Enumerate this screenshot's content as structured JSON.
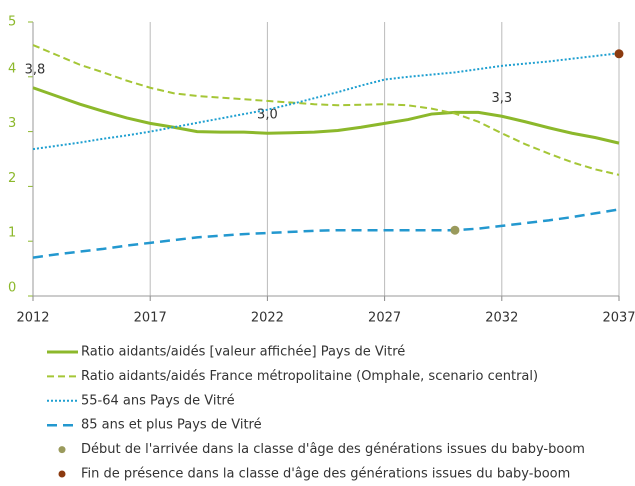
{
  "chart_data": {
    "type": "line",
    "x": [
      2012,
      2013,
      2014,
      2015,
      2016,
      2017,
      2018,
      2019,
      2020,
      2021,
      2022,
      2023,
      2024,
      2025,
      2026,
      2027,
      2028,
      2029,
      2030,
      2031,
      2032,
      2033,
      2034,
      2035,
      2036,
      2037
    ],
    "xlim": [
      2012,
      2037
    ],
    "xticks": [
      2012,
      2017,
      2022,
      2027,
      2032,
      2037
    ],
    "ylim": [
      0,
      5
    ],
    "yticks": [
      0,
      1,
      2,
      3,
      4,
      5
    ],
    "grid": true,
    "series": [
      {
        "name": "Ratio aidants/aidés [valeur affichée] Pays de Vitré",
        "color": "#8cb82b",
        "style": "solid",
        "values": [
          3.8,
          3.65,
          3.5,
          3.37,
          3.25,
          3.15,
          3.08,
          3.0,
          2.99,
          2.99,
          2.97,
          2.98,
          2.99,
          3.02,
          3.08,
          3.15,
          3.22,
          3.32,
          3.35,
          3.35,
          3.28,
          3.18,
          3.07,
          2.97,
          2.89,
          2.79
        ],
        "value_labels": [
          "3,8",
          null,
          null,
          null,
          null,
          null,
          null,
          null,
          null,
          null,
          "3,0",
          null,
          null,
          null,
          null,
          null,
          null,
          null,
          null,
          null,
          "3,3",
          null,
          null,
          null,
          null,
          null
        ]
      },
      {
        "name": "Ratio aidants/aidés France métropolitaine (Omphale, scenario central)",
        "color": "#a5c636",
        "style": "dashed",
        "values": [
          4.58,
          4.4,
          4.22,
          4.08,
          3.93,
          3.8,
          3.7,
          3.65,
          3.62,
          3.59,
          3.56,
          3.53,
          3.5,
          3.48,
          3.49,
          3.5,
          3.48,
          3.42,
          3.33,
          3.18,
          2.97,
          2.77,
          2.6,
          2.44,
          2.31,
          2.21
        ]
      },
      {
        "name": "55-64 ans Pays de Vitré",
        "color": "#1e9fd0",
        "style": "dotted",
        "values": [
          2.68,
          2.74,
          2.8,
          2.87,
          2.93,
          3.0,
          3.08,
          3.16,
          3.24,
          3.32,
          3.4,
          3.5,
          3.61,
          3.72,
          3.84,
          3.95,
          4.0,
          4.04,
          4.08,
          4.14,
          4.2,
          4.24,
          4.28,
          4.33,
          4.38,
          4.43
        ]
      },
      {
        "name": "85 ans et plus Pays de Vitré",
        "color": "#2398cf",
        "style": "longdash",
        "values": [
          0.7,
          0.76,
          0.81,
          0.86,
          0.92,
          0.97,
          1.02,
          1.07,
          1.1,
          1.13,
          1.15,
          1.17,
          1.19,
          1.2,
          1.2,
          1.2,
          1.2,
          1.2,
          1.2,
          1.23,
          1.28,
          1.33,
          1.38,
          1.44,
          1.51,
          1.58
        ]
      }
    ],
    "points": [
      {
        "name": "Début de l'arrivée dans la classe d'âge des générations issues du baby-boom",
        "color": "#9a9a5c",
        "x": 2030,
        "y": 1.2
      },
      {
        "name": "Fin de présence dans la classe d'âge des générations issues du baby-boom",
        "color": "#8b3a0f",
        "x": 2037,
        "y": 4.42
      }
    ]
  }
}
